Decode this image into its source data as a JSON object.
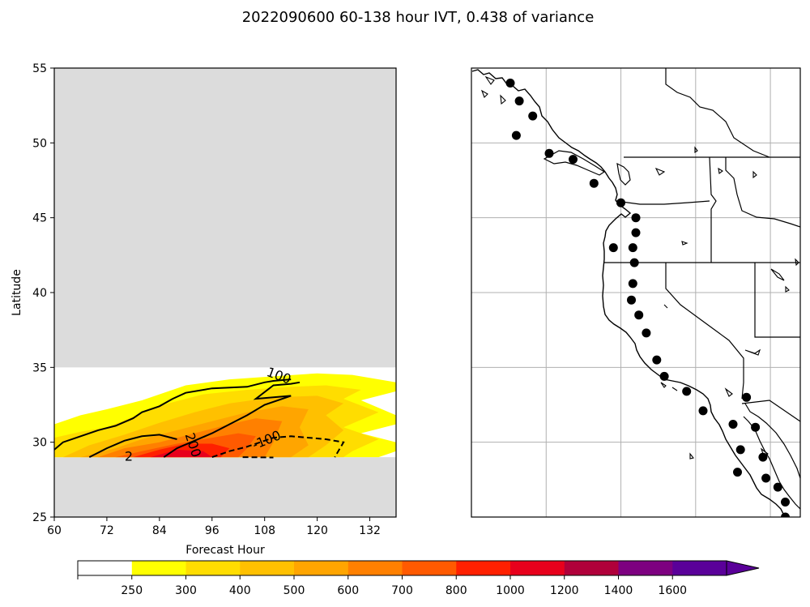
{
  "title": "2022090600 60-138 hour IVT, 0.438 of variance",
  "chart_data": [
    {
      "type": "heatmap",
      "xlabel": "Forecast Hour",
      "ylabel": "Latitude",
      "xlim": [
        60,
        138
      ],
      "ylim": [
        25,
        55
      ],
      "xticks": [
        "60",
        "72",
        "84",
        "96",
        "108",
        "120",
        "132"
      ],
      "yticks": [
        "25",
        "30",
        "35",
        "40",
        "45",
        "50",
        "55"
      ],
      "data_band_lat": [
        29,
        35
      ],
      "masked_color": "#dcdcdc",
      "filled_regions": [
        {
          "level": 250,
          "color": "#ffff00",
          "points": [
            [
              60,
              29
            ],
            [
              60,
              31.2
            ],
            [
              66,
              31.8
            ],
            [
              72,
              32.2
            ],
            [
              80,
              32.8
            ],
            [
              90,
              33.8
            ],
            [
              100,
              34.2
            ],
            [
              110,
              34.4
            ],
            [
              120,
              34.6
            ],
            [
              128,
              34.5
            ],
            [
              138,
              34.0
            ],
            [
              138,
              33.4
            ],
            [
              130,
              32.8
            ],
            [
              138,
              31.8
            ],
            [
              138,
              31.2
            ],
            [
              130,
              30.6
            ],
            [
              138,
              30.0
            ],
            [
              138,
              29.4
            ],
            [
              134,
              29.0
            ]
          ]
        },
        {
          "level": 300,
          "color": "#ffdd00",
          "points": [
            [
              60,
              29
            ],
            [
              60,
              30.3
            ],
            [
              66,
              30.7
            ],
            [
              72,
              31.0
            ],
            [
              78,
              31.7
            ],
            [
              86,
              32.6
            ],
            [
              94,
              33.2
            ],
            [
              104,
              33.5
            ],
            [
              114,
              33.7
            ],
            [
              122,
              33.8
            ],
            [
              130,
              33.5
            ],
            [
              126,
              32.9
            ],
            [
              134,
              32.0
            ],
            [
              126,
              31.0
            ],
            [
              134,
              30.2
            ],
            [
              128,
              29.4
            ],
            [
              126,
              29
            ]
          ]
        },
        {
          "level": 400,
          "color": "#ffc000",
          "points": [
            [
              62,
              29
            ],
            [
              68,
              29.8
            ],
            [
              76,
              30.5
            ],
            [
              84,
              31.3
            ],
            [
              92,
              32.0
            ],
            [
              100,
              32.6
            ],
            [
              110,
              33.0
            ],
            [
              120,
              33.1
            ],
            [
              126,
              32.6
            ],
            [
              122,
              31.8
            ],
            [
              126,
              30.8
            ],
            [
              122,
              29.8
            ],
            [
              118,
              29
            ]
          ]
        },
        {
          "level": 500,
          "color": "#ffa500",
          "points": [
            [
              66,
              29
            ],
            [
              74,
              29.6
            ],
            [
              80,
              30.2
            ],
            [
              88,
              30.8
            ],
            [
              96,
              31.4
            ],
            [
              104,
              32.0
            ],
            [
              112,
              32.4
            ],
            [
              118,
              32.2
            ],
            [
              116,
              31.0
            ],
            [
              118,
              29.8
            ],
            [
              114,
              29
            ]
          ]
        },
        {
          "level": 600,
          "color": "#ff8000",
          "points": [
            [
              70,
              29
            ],
            [
              76,
              29.6
            ],
            [
              84,
              30.0
            ],
            [
              92,
              30.6
            ],
            [
              100,
              31.2
            ],
            [
              106,
              31.6
            ],
            [
              112,
              31.4
            ],
            [
              110,
              30.0
            ],
            [
              108,
              29
            ]
          ]
        },
        {
          "level": 700,
          "color": "#ff5a00",
          "points": [
            [
              74,
              29
            ],
            [
              80,
              29.4
            ],
            [
              88,
              29.9
            ],
            [
              96,
              30.3
            ],
            [
              102,
              30.6
            ],
            [
              106,
              30.4
            ],
            [
              104,
              29.6
            ],
            [
              102,
              29
            ]
          ]
        },
        {
          "level": 800,
          "color": "#ff2000",
          "points": [
            [
              78,
              29
            ],
            [
              84,
              29.5
            ],
            [
              90,
              29.9
            ],
            [
              96,
              29.9
            ],
            [
              100,
              29.6
            ],
            [
              98,
              29
            ]
          ]
        },
        {
          "level": 1000,
          "color": "#e8001c",
          "points": [
            [
              82,
              29
            ],
            [
              88,
              29.5
            ],
            [
              94,
              29.4
            ],
            [
              96,
              29
            ]
          ]
        }
      ],
      "contours": [
        {
          "label": "100",
          "style": "solid",
          "points": [
            [
              60,
              29.5
            ],
            [
              62,
              30
            ],
            [
              66,
              30.4
            ],
            [
              70,
              30.8
            ],
            [
              74,
              31.1
            ],
            [
              78,
              31.6
            ],
            [
              80,
              32.0
            ],
            [
              84,
              32.4
            ],
            [
              87,
              32.9
            ],
            [
              90,
              33.3
            ],
            [
              96,
              33.6
            ],
            [
              104,
              33.7
            ],
            [
              108,
              34.0
            ],
            [
              110,
              34.1
            ],
            [
              114,
              34.2
            ]
          ]
        },
        {
          "label": "200",
          "style": "solid",
          "points": [
            [
              68,
              29.0
            ],
            [
              72,
              29.6
            ],
            [
              76,
              30.1
            ],
            [
              80,
              30.4
            ],
            [
              84,
              30.5
            ],
            [
              88,
              30.2
            ]
          ]
        },
        {
          "label": "",
          "style": "solid",
          "points": [
            [
              85,
              29.0
            ],
            [
              88,
              29.6
            ],
            [
              92,
              30.1
            ],
            [
              96,
              30.6
            ],
            [
              100,
              31.2
            ],
            [
              104,
              31.8
            ],
            [
              108,
              32.5
            ],
            [
              114,
              33.1
            ],
            [
              106,
              32.9
            ],
            [
              110,
              33.8
            ],
            [
              114,
              33.9
            ],
            [
              116,
              34.0
            ]
          ]
        },
        {
          "label": "-100",
          "style": "dashed",
          "points": [
            [
              96,
              29.0
            ],
            [
              100,
              29.4
            ],
            [
              104,
              29.7
            ],
            [
              108,
              30.1
            ],
            [
              110,
              30.3
            ],
            [
              114,
              30.4
            ],
            [
              118,
              30.3
            ],
            [
              122,
              30.2
            ],
            [
              126,
              30.0
            ],
            [
              124,
              29.0
            ]
          ]
        },
        {
          "label": "",
          "style": "dashed",
          "points": [
            [
              103,
              29.0
            ],
            [
              110,
              28.98
            ]
          ]
        }
      ],
      "contour_labels": [
        {
          "text": "100",
          "x": 111.2,
          "y": 34.4,
          "angle": 20
        },
        {
          "text": "200",
          "x": 91.5,
          "y": 29.8,
          "angle": 72
        },
        {
          "text": "-100",
          "x": 108.5,
          "y": 30.1,
          "angle": -22
        },
        {
          "text": "2",
          "x": 77,
          "y": 29.0,
          "angle": 0
        }
      ]
    },
    {
      "type": "map",
      "lon_range": [
        -135,
        -113
      ],
      "lat_range": [
        25,
        55
      ],
      "gridlines": [
        -130,
        -125,
        -120,
        -115
      ],
      "gridlines_lat": [
        30,
        35,
        40,
        45,
        50
      ],
      "stations": [
        [
          -132.4,
          54
        ],
        [
          -131.8,
          52.8
        ],
        [
          -130.9,
          51.8
        ],
        [
          -132,
          50.5
        ],
        [
          -129.8,
          49.3
        ],
        [
          -128.2,
          48.9
        ],
        [
          -126.8,
          47.3
        ],
        [
          -125,
          46
        ],
        [
          -124,
          45
        ],
        [
          -124,
          44
        ],
        [
          -124.2,
          43
        ],
        [
          -124.1,
          42
        ],
        [
          -124.2,
          40.6
        ],
        [
          -124.3,
          39.5
        ],
        [
          -123.8,
          38.5
        ],
        [
          -123.3,
          37.3
        ],
        [
          -122.6,
          35.5
        ],
        [
          -122.1,
          34.4
        ],
        [
          -120.6,
          33.4
        ],
        [
          -119.5,
          32.1
        ],
        [
          -117.5,
          31.2
        ],
        [
          -117,
          29.5
        ],
        [
          -117.2,
          28
        ],
        [
          -125.5,
          43
        ],
        [
          -116.6,
          33
        ],
        [
          -116,
          31
        ],
        [
          -115.5,
          29
        ],
        [
          -114.5,
          27
        ],
        [
          -114,
          26
        ],
        [
          -115.3,
          27.6
        ],
        [
          -114,
          25
        ]
      ],
      "borders": {
        "us_canada_lat": 49,
        "or_ca_lat": 42,
        "ca_mx_lat": 32.5
      }
    }
  ],
  "colorbar": {
    "levels": [
      "250",
      "300",
      "400",
      "500",
      "600",
      "700",
      "800",
      "1000",
      "1200",
      "1400",
      "1600"
    ],
    "colors": [
      "#ffffff",
      "#ffff00",
      "#ffdd00",
      "#ffc000",
      "#ffa500",
      "#ff8000",
      "#ff5a00",
      "#ff2000",
      "#e8001c",
      "#b0003a",
      "#7d0080",
      "#5a0099",
      "#5a0099"
    ],
    "extend": "max"
  }
}
